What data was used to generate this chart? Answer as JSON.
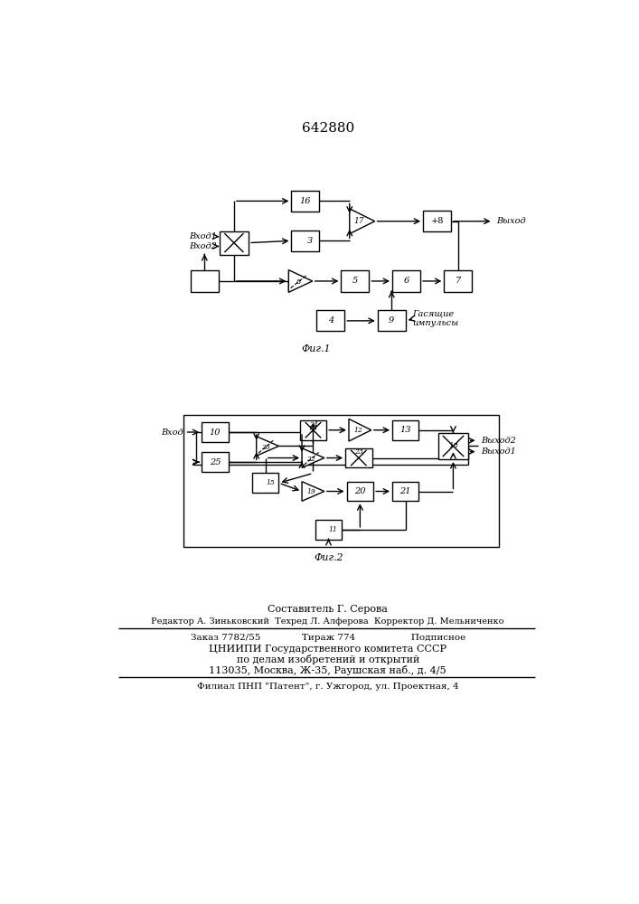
{
  "patent_number": "642880",
  "fig1_caption": "Фиг.1",
  "fig2_caption": "Фиг.2",
  "footer_lines": [
    "Составитель Г. Серова",
    "Редактор А. Зиньковский  Техред Л. Алферова  Корректор Д. Мельниченко",
    "Заказ 7782/55              Тираж 774                   Подписное",
    "ЦНИИПИ Государственного комитета СССР",
    "по делам изобретений и открытий",
    "113035, Москва, Ж-35, Раушская наб., д. 4/5",
    "Филиал ПНП \"Патент\", г. Ужгород, ул. Проектная, 4"
  ],
  "bg_color": "#ffffff"
}
